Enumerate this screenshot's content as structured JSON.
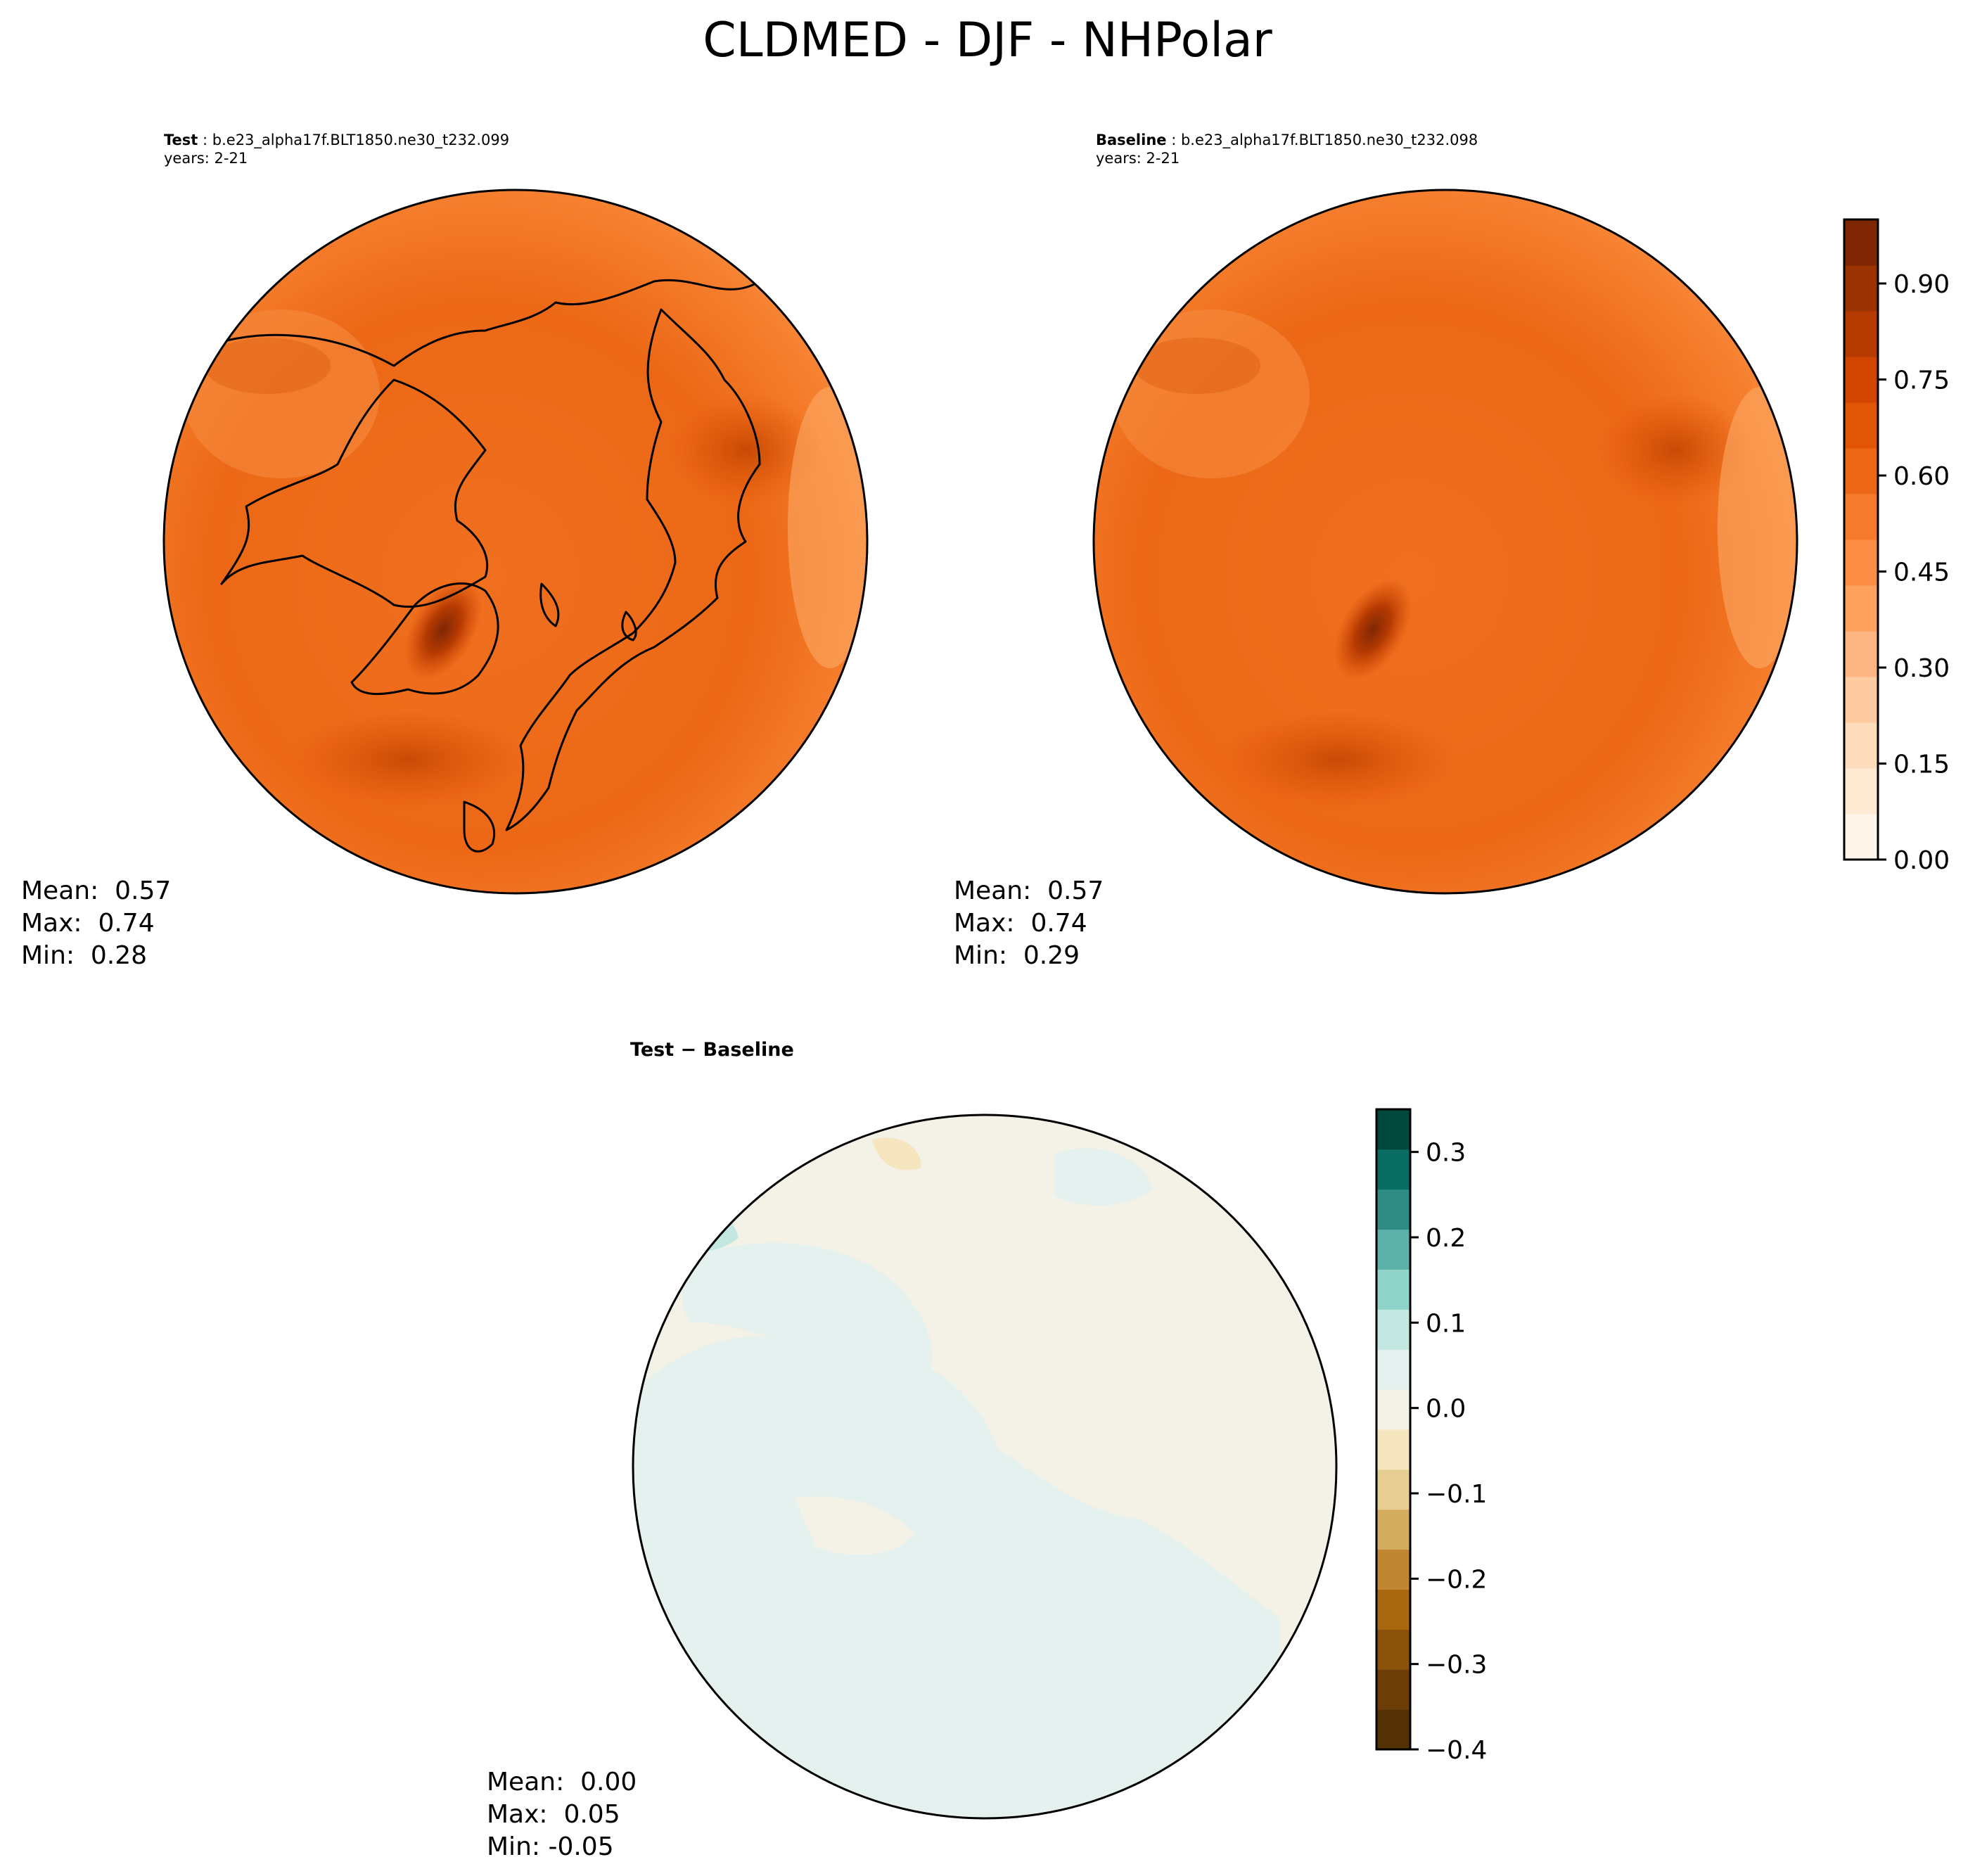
{
  "figure_title": "CLDMED - DJF - NHPolar",
  "panels": {
    "test": {
      "label": "Test",
      "case": "b.e23_alpha17f.BLT1850.ne30_t232.099",
      "years": "years: 2-21",
      "stats": {
        "mean": "Mean:  0.57",
        "max": "Max:  0.74",
        "min": "Min:  0.28"
      }
    },
    "baseline": {
      "label": "Baseline",
      "case": "b.e23_alpha17f.BLT1850.ne30_t232.098",
      "years": "years: 2-21",
      "stats": {
        "mean": "Mean:  0.57",
        "max": "Max:  0.74",
        "min": "Min:  0.29"
      }
    },
    "diff": {
      "title": "Test − Baseline",
      "stats": {
        "mean": "Mean:  0.00",
        "max": "Max:  0.05",
        "min": "Min: -0.05"
      }
    }
  },
  "chart_data": [
    {
      "type": "heatmap",
      "title": "Test : b.e23_alpha17f.BLT1850.ne30_t232.099",
      "projection": "NH polar stereographic",
      "colormap": "Oranges",
      "vmin": 0.0,
      "vmax": 1.0,
      "mean": 0.57,
      "max": 0.74,
      "min": 0.28
    },
    {
      "type": "heatmap",
      "title": "Baseline : b.e23_alpha17f.BLT1850.ne30_t232.098",
      "projection": "NH polar stereographic",
      "colormap": "Oranges",
      "vmin": 0.0,
      "vmax": 1.0,
      "mean": 0.57,
      "max": 0.74,
      "min": 0.29
    },
    {
      "type": "heatmap",
      "title": "Test − Baseline",
      "projection": "NH polar stereographic",
      "colormap": "BrBG",
      "vmin": -0.4,
      "vmax": 0.35,
      "mean": 0.0,
      "max": 0.05,
      "min": -0.05
    }
  ],
  "colorbars": {
    "main": {
      "ticks": [
        "0.00",
        "0.15",
        "0.30",
        "0.45",
        "0.60",
        "0.75",
        "0.90"
      ],
      "tick_values": [
        0.0,
        0.15,
        0.3,
        0.45,
        0.6,
        0.75,
        0.9
      ],
      "range": [
        0.0,
        1.0
      ],
      "colors": [
        "#fff5eb",
        "#fee9d3",
        "#fddcbb",
        "#fdcb9f",
        "#fdb682",
        "#fda15f",
        "#fd8c44",
        "#f67a2b",
        "#ec6816",
        "#e05506",
        "#d04501",
        "#b53a02",
        "#9b3203",
        "#7f2704"
      ]
    },
    "diff": {
      "ticks": [
        "0.3",
        "0.2",
        "0.1",
        "0.0",
        "−0.1",
        "−0.2",
        "−0.3",
        "−0.4"
      ],
      "tick_values": [
        0.3,
        0.2,
        0.1,
        0.0,
        -0.1,
        -0.2,
        -0.3,
        -0.4
      ],
      "range": [
        -0.4,
        0.35
      ],
      "colors": [
        "#543005",
        "#6d3d08",
        "#8a510b",
        "#a8680f",
        "#c08631",
        "#d4ac60",
        "#e7cf94",
        "#f5e6bf",
        "#f4f1e6",
        "#e5f1ef",
        "#c2e8e1",
        "#90d3c8",
        "#5cb2a8",
        "#2e8c84",
        "#0a6d63",
        "#01493c"
      ]
    }
  }
}
